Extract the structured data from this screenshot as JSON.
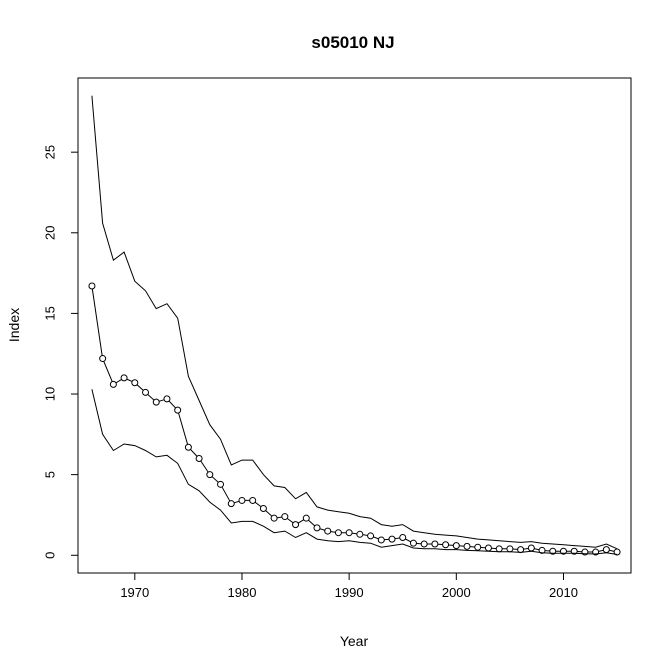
{
  "chart_data": {
    "type": "line",
    "title": "s05010 NJ",
    "xlabel": "Year",
    "ylabel": "Index",
    "xlim": [
      1964.7,
      2016.3
    ],
    "ylim": [
      -1.1,
      29.6
    ],
    "x_ticks": [
      1970,
      1980,
      1990,
      2000,
      2010
    ],
    "y_ticks": [
      0,
      5,
      10,
      15,
      20,
      25
    ],
    "grid": false,
    "legend": "none",
    "x": [
      1966,
      1967,
      1968,
      1969,
      1970,
      1971,
      1972,
      1973,
      1974,
      1975,
      1976,
      1977,
      1978,
      1979,
      1980,
      1981,
      1982,
      1983,
      1984,
      1985,
      1986,
      1987,
      1988,
      1989,
      1990,
      1991,
      1992,
      1993,
      1994,
      1995,
      1996,
      1997,
      1998,
      1999,
      2000,
      2001,
      2002,
      2003,
      2004,
      2005,
      2006,
      2007,
      2008,
      2009,
      2010,
      2011,
      2012,
      2013,
      2014,
      2015
    ],
    "series": [
      {
        "role": "upper",
        "markers": false,
        "values": [
          28.5,
          20.6,
          18.3,
          18.8,
          17.0,
          16.4,
          15.3,
          15.6,
          14.7,
          11.1,
          9.6,
          8.1,
          7.2,
          5.6,
          5.9,
          5.9,
          5.0,
          4.3,
          4.2,
          3.5,
          3.9,
          3.0,
          2.8,
          2.7,
          2.6,
          2.4,
          2.3,
          1.9,
          1.8,
          1.9,
          1.5,
          1.4,
          1.3,
          1.25,
          1.2,
          1.1,
          1.0,
          0.95,
          0.9,
          0.85,
          0.8,
          0.85,
          0.75,
          0.7,
          0.65,
          0.6,
          0.55,
          0.5,
          0.7,
          0.4
        ]
      },
      {
        "role": "estimate",
        "markers": true,
        "values": [
          16.7,
          12.2,
          10.6,
          11.0,
          10.7,
          10.1,
          9.5,
          9.7,
          9.0,
          6.7,
          6.0,
          5.0,
          4.4,
          3.2,
          3.4,
          3.4,
          2.9,
          2.3,
          2.4,
          1.9,
          2.3,
          1.7,
          1.5,
          1.4,
          1.4,
          1.3,
          1.2,
          0.95,
          1.0,
          1.1,
          0.75,
          0.7,
          0.7,
          0.65,
          0.6,
          0.55,
          0.5,
          0.45,
          0.4,
          0.4,
          0.35,
          0.45,
          0.3,
          0.25,
          0.25,
          0.25,
          0.2,
          0.2,
          0.35,
          0.2
        ]
      },
      {
        "role": "lower",
        "markers": false,
        "values": [
          10.3,
          7.5,
          6.5,
          6.9,
          6.8,
          6.5,
          6.1,
          6.2,
          5.7,
          4.4,
          4.0,
          3.3,
          2.8,
          2.0,
          2.1,
          2.1,
          1.8,
          1.4,
          1.5,
          1.1,
          1.4,
          1.0,
          0.9,
          0.85,
          0.9,
          0.8,
          0.75,
          0.5,
          0.6,
          0.7,
          0.45,
          0.4,
          0.4,
          0.35,
          0.35,
          0.3,
          0.28,
          0.25,
          0.22,
          0.22,
          0.18,
          0.25,
          0.15,
          0.12,
          0.12,
          0.12,
          0.1,
          0.08,
          0.15,
          0.05
        ]
      }
    ]
  }
}
